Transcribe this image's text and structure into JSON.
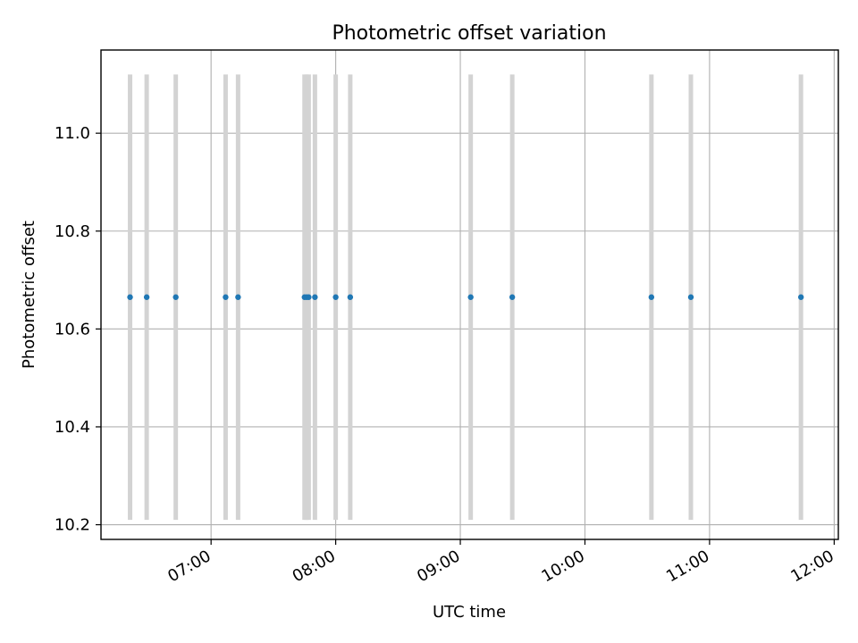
{
  "chart_data": {
    "type": "scatter",
    "title": "Photometric offset variation",
    "xlabel": "UTC time",
    "ylabel": "Photometric offset",
    "x_axis_type": "time",
    "xlim": [
      "06:07",
      "12:02"
    ],
    "ylim": [
      10.17,
      11.17
    ],
    "x_ticks": [
      "07:00",
      "08:00",
      "09:00",
      "10:00",
      "11:00",
      "12:00"
    ],
    "y_ticks": [
      10.2,
      10.4,
      10.6,
      10.8,
      11.0
    ],
    "grid": true,
    "legend": "none",
    "point_color": "#1f77b4",
    "band_color": "#d3d3d3",
    "band_range": [
      10.21,
      11.12
    ],
    "points": [
      {
        "x": "06:21",
        "y": 10.665
      },
      {
        "x": "06:29",
        "y": 10.665
      },
      {
        "x": "06:43",
        "y": 10.665
      },
      {
        "x": "07:07",
        "y": 10.665
      },
      {
        "x": "07:13",
        "y": 10.665
      },
      {
        "x": "07:45",
        "y": 10.665
      },
      {
        "x": "07:46",
        "y": 10.665
      },
      {
        "x": "07:47",
        "y": 10.665
      },
      {
        "x": "07:50",
        "y": 10.665
      },
      {
        "x": "08:00",
        "y": 10.665
      },
      {
        "x": "08:07",
        "y": 10.665
      },
      {
        "x": "09:05",
        "y": 10.665
      },
      {
        "x": "09:25",
        "y": 10.665
      },
      {
        "x": "10:32",
        "y": 10.665
      },
      {
        "x": "10:51",
        "y": 10.665
      },
      {
        "x": "11:44",
        "y": 10.665
      }
    ]
  }
}
